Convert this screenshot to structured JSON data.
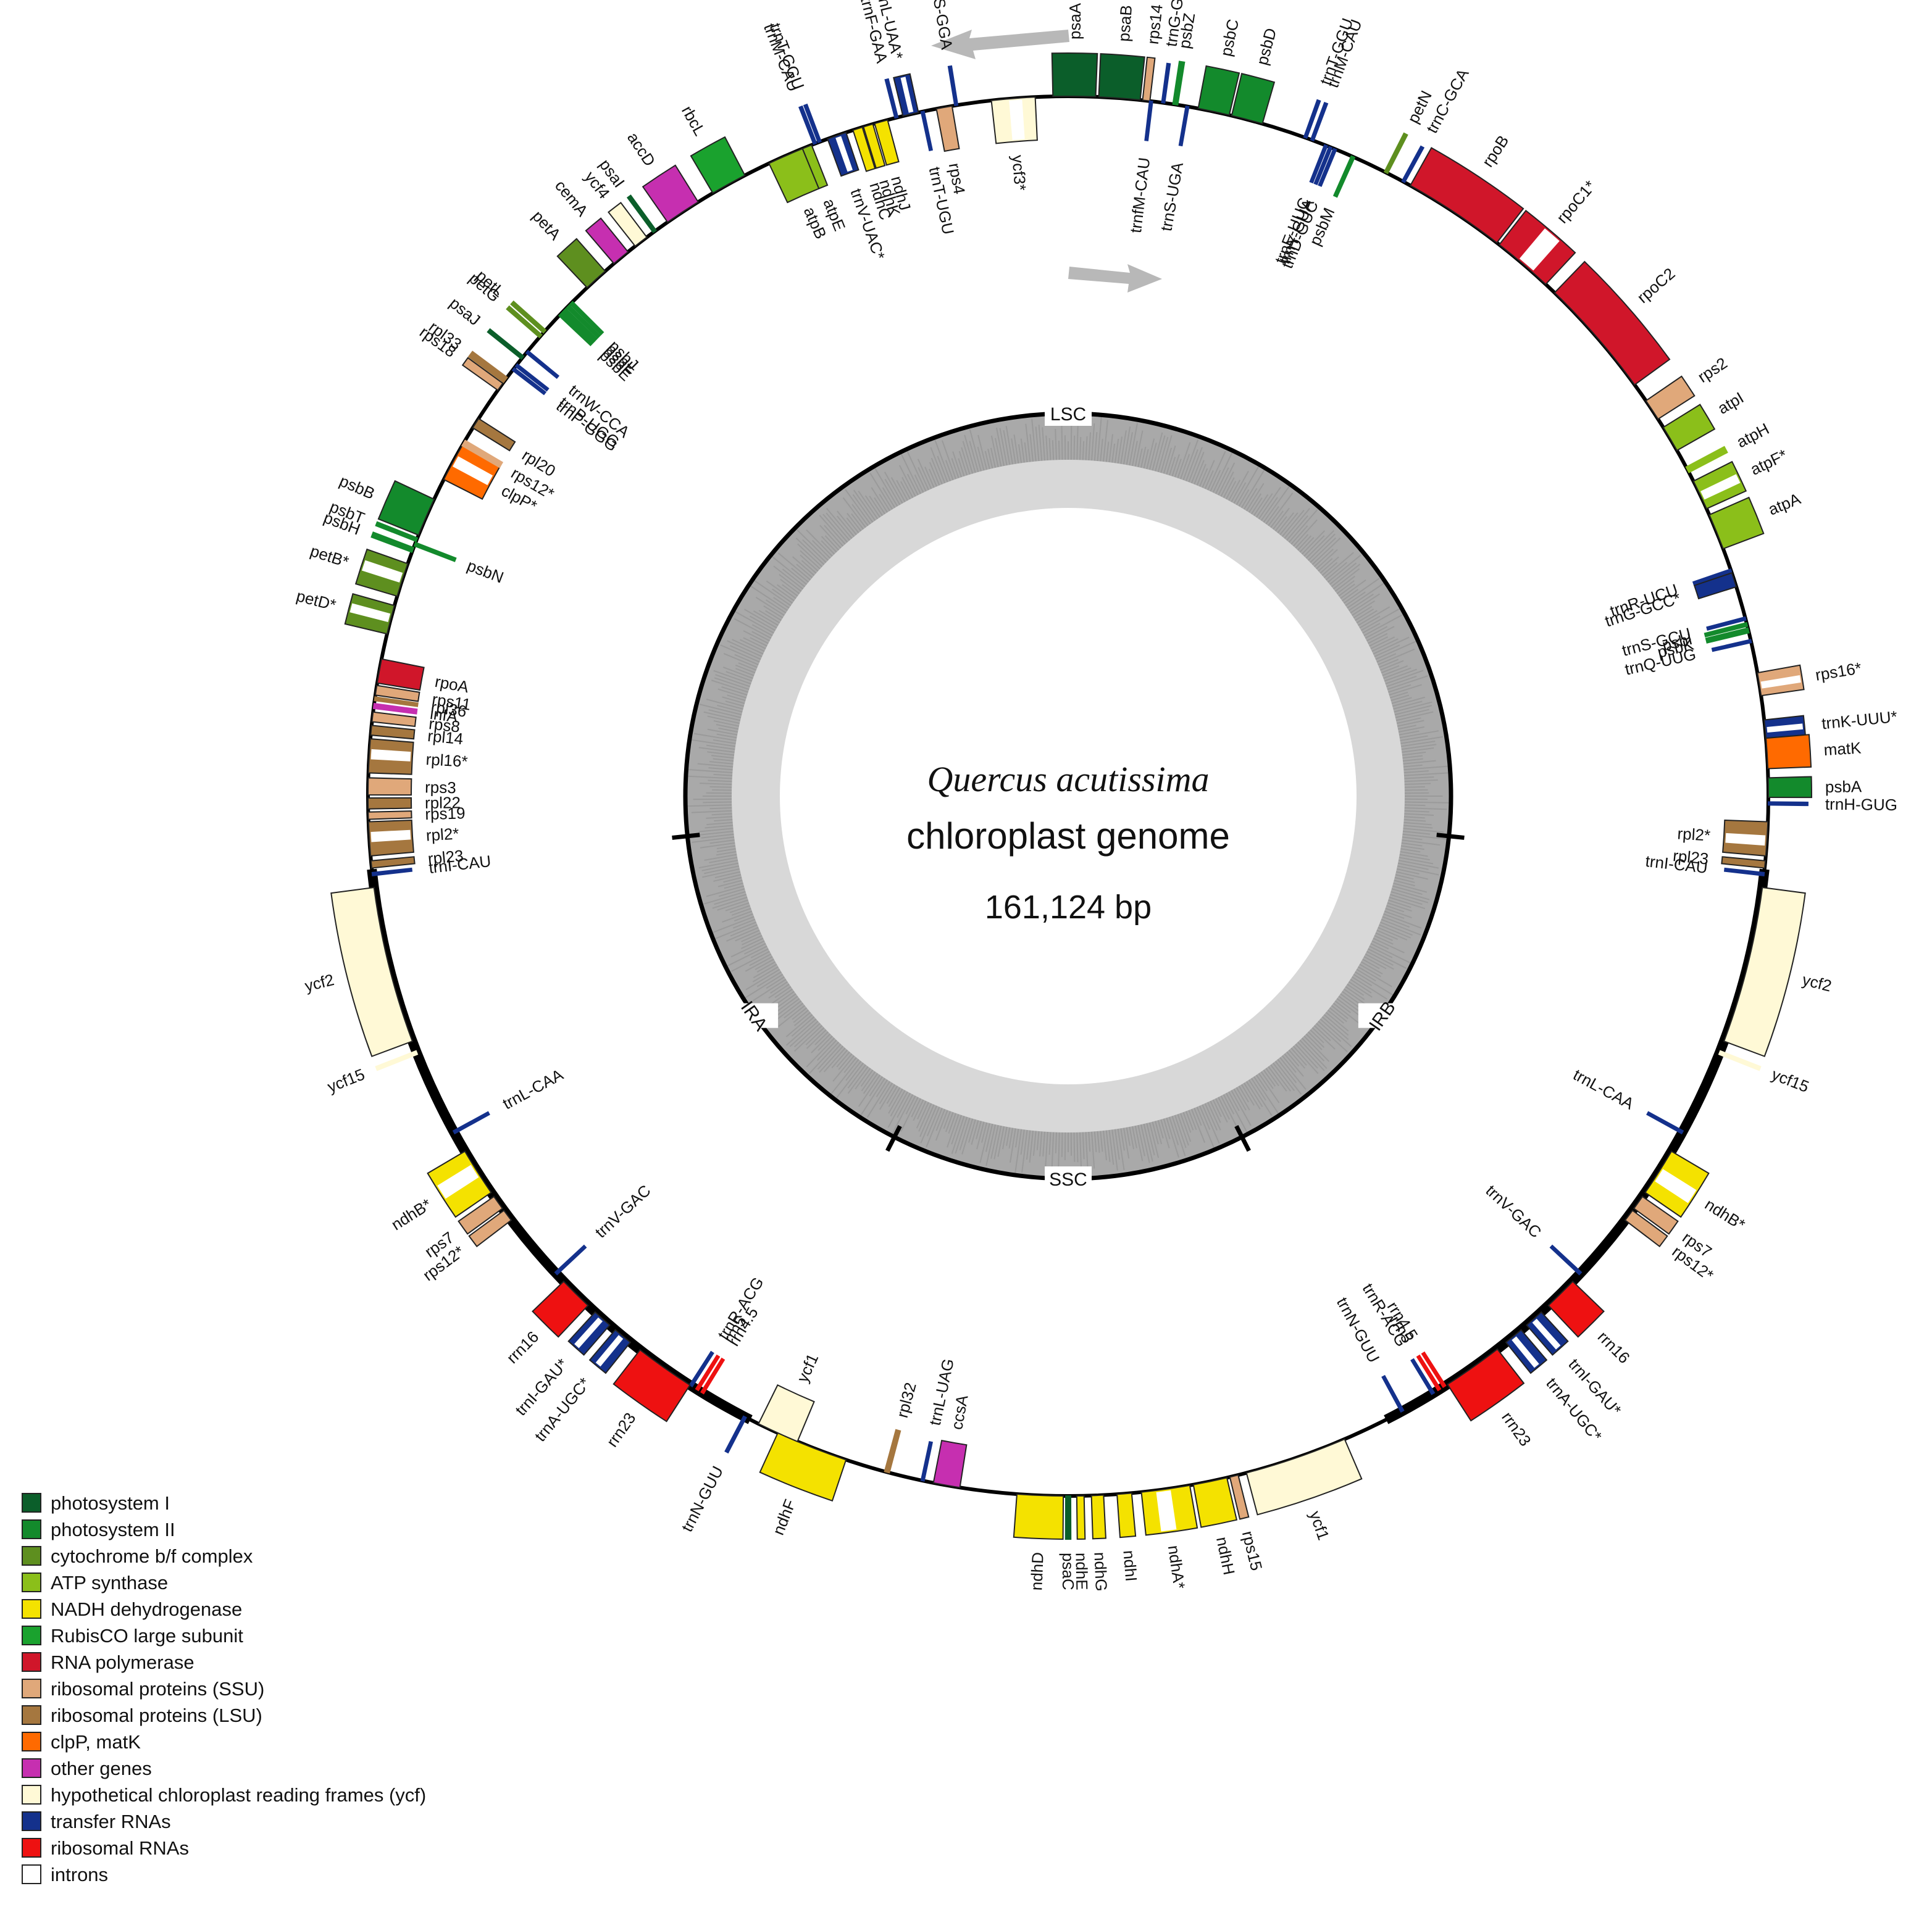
{
  "title": {
    "species": "Quercus acutissima",
    "subtitle": "chloroplast genome",
    "size_label": "161,124 bp"
  },
  "regions": [
    "LSC",
    "IRB",
    "SSC",
    "IRA"
  ],
  "legend": [
    {
      "label": "photosystem I",
      "color": "#0b5e2a"
    },
    {
      "label": "photosystem II",
      "color": "#138a2c"
    },
    {
      "label": "cytochrome b/f complex",
      "color": "#5e8f1f"
    },
    {
      "label": "ATP synthase",
      "color": "#8bbf1a"
    },
    {
      "label": "NADH dehydrogenase",
      "color": "#f4e200"
    },
    {
      "label": "RubisCO large subunit",
      "color": "#1aa22e"
    },
    {
      "label": "RNA polymerase",
      "color": "#d0162a"
    },
    {
      "label": "ribosomal proteins (SSU)",
      "color": "#e0a87a"
    },
    {
      "label": "ribosomal proteins (LSU)",
      "color": "#a5773f"
    },
    {
      "label": "clpP, matK",
      "color": "#ff6a00"
    },
    {
      "label": "other genes",
      "color": "#c62fb0"
    },
    {
      "label": "hypothetical chloroplast reading frames (ycf)",
      "color": "#fff9d6"
    },
    {
      "label": "transfer RNAs",
      "color": "#14318c"
    },
    {
      "label": "ribosomal RNAs",
      "color": "#ee1111"
    },
    {
      "label": "introns",
      "color": "#ffffff"
    }
  ],
  "genes": [
    {
      "name": "psaA",
      "cat": "photosystem I",
      "side": "out",
      "clock": 0.5,
      "span": 3.5
    },
    {
      "name": "psaB",
      "cat": "photosystem I",
      "side": "out",
      "clock": 4.2,
      "span": 3.4
    },
    {
      "name": "rps14",
      "cat": "ribosomal proteins (SSU)",
      "side": "out",
      "clock": 6.4,
      "span": 0.6
    },
    {
      "name": "trnfM-CAU",
      "cat": "transfer RNAs",
      "side": "in",
      "clock": 6.8,
      "span": 0.25
    },
    {
      "name": "trnG-GCC*",
      "cat": "transfer RNAs",
      "side": "out",
      "clock": 7.8,
      "span": 0.25
    },
    {
      "name": "psbZ",
      "cat": "photosystem II",
      "side": "out",
      "clock": 8.8,
      "span": 0.4
    },
    {
      "name": "trnS-UGA",
      "cat": "transfer RNAs",
      "side": "in",
      "clock": 9.8,
      "span": 0.25
    },
    {
      "name": "psbC",
      "cat": "photosystem II",
      "side": "out",
      "clock": 12.0,
      "span": 2.6
    },
    {
      "name": "psbD",
      "cat": "photosystem II",
      "side": "out",
      "clock": 14.8,
      "span": 2.6
    },
    {
      "name": "trnT-GGU",
      "cat": "transfer RNAs",
      "side": "out",
      "clock": 19.8,
      "span": 0.25
    },
    {
      "name": "trnM-CAU",
      "cat": "transfer RNAs",
      "side": "out",
      "clock": 20.4,
      "span": 0.25
    },
    {
      "name": "trnE-UUC",
      "cat": "transfer RNAs",
      "side": "in",
      "clock": 21.6,
      "span": 0.25
    },
    {
      "name": "trnY-GUA",
      "cat": "transfer RNAs",
      "side": "in",
      "clock": 22.0,
      "span": 0.25
    },
    {
      "name": "trnD-GUC",
      "cat": "transfer RNAs",
      "side": "in",
      "clock": 22.4,
      "span": 0.25
    },
    {
      "name": "psbM",
      "cat": "photosystem II",
      "side": "in",
      "clock": 24.0,
      "span": 0.3
    },
    {
      "name": "petN",
      "cat": "cytochrome b/f complex",
      "side": "out",
      "clock": 27.0,
      "span": 0.3
    },
    {
      "name": "trnC-GCA",
      "cat": "transfer RNAs",
      "side": "out",
      "clock": 28.6,
      "span": 0.25
    },
    {
      "name": "rpoB",
      "cat": "RNA polymerase",
      "side": "out",
      "clock": 33.5,
      "span": 8.5
    },
    {
      "name": "rpoC1*",
      "cat": "RNA polymerase",
      "side": "out",
      "clock": 40.5,
      "span": 5.0
    },
    {
      "name": "rpoC2",
      "cat": "RNA polymerase",
      "side": "out",
      "clock": 49.0,
      "span": 10.0
    },
    {
      "name": "rps2",
      "cat": "ribosomal proteins (SSU)",
      "side": "out",
      "clock": 56.5,
      "span": 1.8
    },
    {
      "name": "atpI",
      "cat": "ATP synthase",
      "side": "out",
      "clock": 59.3,
      "span": 2.2
    },
    {
      "name": "atpH",
      "cat": "ATP synthase",
      "side": "out",
      "clock": 62.2,
      "span": 0.5
    },
    {
      "name": "atpF*",
      "cat": "ATP synthase",
      "side": "out",
      "clock": 64.5,
      "span": 2.5
    },
    {
      "name": "atpA",
      "cat": "ATP synthase",
      "side": "out",
      "clock": 67.8,
      "span": 3.0
    },
    {
      "name": "trnR-UCU",
      "cat": "transfer RNAs",
      "side": "in",
      "clock": 71.2,
      "span": 0.25
    },
    {
      "name": "trnG-GCC*",
      "cat": "transfer RNAs",
      "side": "in",
      "clock": 72.0,
      "span": 1.2
    },
    {
      "name": "trnS-GCU",
      "cat": "transfer RNAs",
      "side": "in",
      "clock": 75.3,
      "span": 0.25
    },
    {
      "name": "psbI",
      "cat": "photosystem II",
      "side": "in",
      "clock": 75.8,
      "span": 0.3
    },
    {
      "name": "psbK",
      "cat": "photosystem II",
      "side": "in",
      "clock": 76.3,
      "span": 0.4
    },
    {
      "name": "trnQ-UUG",
      "cat": "transfer RNAs",
      "side": "in",
      "clock": 77.2,
      "span": 0.25
    },
    {
      "name": "rps16*",
      "cat": "ribosomal proteins (SSU)",
      "side": "out",
      "clock": 80.8,
      "span": 1.9
    },
    {
      "name": "trnK-UUU*",
      "cat": "transfer RNAs",
      "side": "out",
      "clock": 84.5,
      "span": 1.5
    },
    {
      "name": "matK",
      "cat": "clpP, matK",
      "side": "out",
      "clock": 86.5,
      "span": 2.5
    },
    {
      "name": "psbA",
      "cat": "photosystem II",
      "side": "out",
      "clock": 89.3,
      "span": 1.6
    },
    {
      "name": "trnH-GUG",
      "cat": "transfer RNAs",
      "side": "out",
      "clock": 90.6,
      "span": 0.25
    },
    {
      "name": "rpl2*",
      "cat": "ribosomal proteins (LSU)",
      "side": "in",
      "clock": 93.5,
      "span": 2.8
    },
    {
      "name": "rpl23",
      "cat": "ribosomal proteins (LSU)",
      "side": "in",
      "clock": 95.6,
      "span": 0.6
    },
    {
      "name": "trnI-CAU",
      "cat": "transfer RNAs",
      "side": "in",
      "clock": 96.4,
      "span": 0.25
    },
    {
      "name": "ycf2",
      "cat": "hypothetical chloroplast reading frames (ycf)",
      "side": "out",
      "clock": 104.0,
      "span": 13.0
    },
    {
      "name": "ycf15",
      "cat": "hypothetical chloroplast reading frames (ycf)",
      "side": "out",
      "clock": 111.5,
      "span": 0.3
    },
    {
      "name": "trnL-CAA",
      "cat": "transfer RNAs",
      "side": "in",
      "clock": 118.7,
      "span": 0.25
    },
    {
      "name": "ndhB*",
      "cat": "NADH dehydrogenase",
      "side": "out",
      "clock": 122.5,
      "span": 4.0
    },
    {
      "name": "rps7",
      "cat": "ribosomal proteins (SSU)",
      "side": "out",
      "clock": 125.5,
      "span": 1.2
    },
    {
      "name": "rps12*",
      "cat": "ribosomal proteins (SSU)",
      "side": "out",
      "clock": 126.8,
      "span": 1.0
    },
    {
      "name": "trnV-GAC",
      "cat": "transfer RNAs",
      "side": "in",
      "clock": 133.0,
      "span": 0.25
    },
    {
      "name": "rrn16",
      "cat": "ribosomal RNAs",
      "side": "out",
      "clock": 135.3,
      "span": 2.8
    },
    {
      "name": "trnI-GAU*",
      "cat": "transfer RNAs",
      "side": "out",
      "clock": 138.3,
      "span": 1.6
    },
    {
      "name": "trnA-UGC*",
      "cat": "transfer RNAs",
      "side": "out",
      "clock": 140.5,
      "span": 1.6
    },
    {
      "name": "rrn23",
      "cat": "ribosomal RNAs",
      "side": "out",
      "clock": 144.7,
      "span": 5.0
    },
    {
      "name": "rrn4.5",
      "cat": "ribosomal RNAs",
      "side": "in",
      "clock": 147.5,
      "span": 0.25
    },
    {
      "name": "rrn5",
      "cat": "ribosomal RNAs",
      "side": "in",
      "clock": 148.0,
      "span": 0.25
    },
    {
      "name": "trnR-ACG",
      "cat": "transfer RNAs",
      "side": "in",
      "clock": 148.6,
      "span": 0.25
    },
    {
      "name": "trnN-GUU",
      "cat": "transfer RNAs",
      "side": "in",
      "clock": 151.5,
      "span": 0.25
    },
    {
      "name": "ycf1",
      "cat": "hypothetical chloroplast reading frames (ycf)",
      "side": "out",
      "clock": 161.0,
      "span": 8.5
    },
    {
      "name": "rps15",
      "cat": "ribosomal proteins (SSU)",
      "side": "out",
      "clock": 166.3,
      "span": 0.7
    },
    {
      "name": "ndhH",
      "cat": "NADH dehydrogenase",
      "side": "out",
      "clock": 168.3,
      "span": 2.8
    },
    {
      "name": "ndhA*",
      "cat": "NADH dehydrogenase",
      "side": "out",
      "clock": 172.0,
      "span": 4.0
    },
    {
      "name": "ndhI",
      "cat": "NADH dehydrogenase",
      "side": "out",
      "clock": 175.4,
      "span": 1.2
    },
    {
      "name": "ndhG",
      "cat": "NADH dehydrogenase",
      "side": "out",
      "clock": 177.6,
      "span": 1.0
    },
    {
      "name": "ndhE",
      "cat": "NADH dehydrogenase",
      "side": "out",
      "clock": 179.0,
      "span": 0.6
    },
    {
      "name": "psaC",
      "cat": "photosystem I",
      "side": "out",
      "clock": 180.0,
      "span": 0.4
    },
    {
      "name": "ndhD",
      "cat": "NADH dehydrogenase",
      "side": "out",
      "clock": 182.3,
      "span": 3.8
    },
    {
      "name": "ccsA",
      "cat": "other genes",
      "side": "in",
      "clock": 190.0,
      "span": 2.2
    },
    {
      "name": "trnL-UAG",
      "cat": "transfer RNAs",
      "side": "in",
      "clock": 192.0,
      "span": 0.25
    },
    {
      "name": "rpl32",
      "cat": "ribosomal proteins (LSU)",
      "side": "in",
      "clock": 195.0,
      "span": 0.4
    },
    {
      "name": "ndhF",
      "cat": "NADH dehydrogenase",
      "side": "out",
      "clock": 201.5,
      "span": 6.0
    },
    {
      "name": "ycf1",
      "cat": "hypothetical chloroplast reading frames (ycf)",
      "side": "in",
      "clock": 204.5,
      "span": 3.5
    },
    {
      "name": "trnN-GUU",
      "cat": "transfer RNAs",
      "side": "out",
      "clock": 207.5,
      "span": 0.25
    },
    {
      "name": "rrn4.5",
      "cat": "ribosomal RNAs",
      "side": "in",
      "clock": 211.5,
      "span": 0.25
    },
    {
      "name": "rrn5",
      "cat": "ribosomal RNAs",
      "side": "in",
      "clock": 212.0,
      "span": 0.25
    },
    {
      "name": "trnR-ACG",
      "cat": "transfer RNAs",
      "side": "in",
      "clock": 212.6,
      "span": 0.25
    },
    {
      "name": "rrn23",
      "cat": "ribosomal RNAs",
      "side": "out",
      "clock": 215.2,
      "span": 5.0
    },
    {
      "name": "trnA-UGC*",
      "cat": "transfer RNAs",
      "side": "out",
      "clock": 219.5,
      "span": 1.6
    },
    {
      "name": "trnI-GAU*",
      "cat": "transfer RNAs",
      "side": "out",
      "clock": 221.7,
      "span": 1.6
    },
    {
      "name": "rrn16",
      "cat": "ribosomal RNAs",
      "side": "out",
      "clock": 224.7,
      "span": 2.8
    },
    {
      "name": "trnV-GAC",
      "cat": "transfer RNAs",
      "side": "in",
      "clock": 227.0,
      "span": 0.25
    },
    {
      "name": "rps12*",
      "cat": "ribosomal proteins (SSU)",
      "side": "out",
      "clock": 233.2,
      "span": 1.0
    },
    {
      "name": "rps7",
      "cat": "ribosomal proteins (SSU)",
      "side": "out",
      "clock": 234.5,
      "span": 1.2
    },
    {
      "name": "ndhB*",
      "cat": "NADH dehydrogenase",
      "side": "out",
      "clock": 237.5,
      "span": 4.0
    },
    {
      "name": "trnL-CAA",
      "cat": "transfer RNAs",
      "side": "in",
      "clock": 241.3,
      "span": 0.25
    },
    {
      "name": "ycf15",
      "cat": "hypothetical chloroplast reading frames (ycf)",
      "side": "out",
      "clock": 248.5,
      "span": 0.3
    },
    {
      "name": "ycf2",
      "cat": "hypothetical chloroplast reading frames (ycf)",
      "side": "out",
      "clock": 256.0,
      "span": 13.0
    },
    {
      "name": "trnI-CAU",
      "cat": "transfer RNAs",
      "side": "in",
      "clock": 263.6,
      "span": 0.25
    },
    {
      "name": "rpl23",
      "cat": "ribosomal proteins (LSU)",
      "side": "in",
      "clock": 264.4,
      "span": 0.6
    },
    {
      "name": "rpl2*",
      "cat": "ribosomal proteins (LSU)",
      "side": "in",
      "clock": 266.5,
      "span": 2.8
    },
    {
      "name": "rps19",
      "cat": "ribosomal proteins (SSU)",
      "side": "in",
      "clock": 268.4,
      "span": 0.6
    },
    {
      "name": "rpl22",
      "cat": "ribosomal proteins (LSU)",
      "side": "in",
      "clock": 269.4,
      "span": 0.9
    },
    {
      "name": "rps3",
      "cat": "ribosomal proteins (SSU)",
      "side": "in",
      "clock": 270.8,
      "span": 1.4
    },
    {
      "name": "rpl16*",
      "cat": "ribosomal proteins (LSU)",
      "side": "in",
      "clock": 273.3,
      "span": 2.8
    },
    {
      "name": "rpl14",
      "cat": "ribosomal proteins (LSU)",
      "side": "in",
      "clock": 275.4,
      "span": 0.8
    },
    {
      "name": "rps8",
      "cat": "ribosomal proteins (SSU)",
      "side": "in",
      "clock": 276.5,
      "span": 0.8
    },
    {
      "name": "infA",
      "cat": "other genes",
      "side": "in",
      "clock": 277.4,
      "span": 0.4
    },
    {
      "name": "rpl36",
      "cat": "ribosomal proteins (LSU)",
      "side": "in",
      "clock": 278.0,
      "span": 0.3
    },
    {
      "name": "rps11",
      "cat": "ribosomal proteins (SSU)",
      "side": "in",
      "clock": 278.7,
      "span": 0.8
    },
    {
      "name": "rpoA",
      "cat": "RNA polymerase",
      "side": "in",
      "clock": 280.3,
      "span": 2.0
    },
    {
      "name": "petD*",
      "cat": "cytochrome b/f complex",
      "side": "out",
      "clock": 284.6,
      "span": 2.4
    },
    {
      "name": "petB*",
      "cat": "cytochrome b/f complex",
      "side": "out",
      "clock": 288.0,
      "span": 2.8
    },
    {
      "name": "psbH",
      "cat": "photosystem II",
      "side": "out",
      "clock": 290.6,
      "span": 0.4
    },
    {
      "name": "psbN",
      "cat": "photosystem II",
      "side": "in",
      "clock": 291.1,
      "span": 0.3
    },
    {
      "name": "psbT",
      "cat": "photosystem II",
      "side": "out",
      "clock": 291.5,
      "span": 0.3
    },
    {
      "name": "psbB",
      "cat": "photosystem II",
      "side": "out",
      "clock": 293.5,
      "span": 3.2
    },
    {
      "name": "clpP*",
      "cat": "clpP, matK",
      "side": "in",
      "clock": 298.5,
      "span": 3.2
    },
    {
      "name": "rps12*",
      "cat": "ribosomal proteins (SSU)",
      "side": "in",
      "clock": 300.3,
      "span": 0.5
    },
    {
      "name": "rpl20",
      "cat": "ribosomal proteins (LSU)",
      "side": "in",
      "clock": 302.2,
      "span": 0.9
    },
    {
      "name": "rps18",
      "cat": "ribosomal proteins (SSU)",
      "side": "out",
      "clock": 305.8,
      "span": 0.7
    },
    {
      "name": "rpl33",
      "cat": "ribosomal proteins (LSU)",
      "side": "out",
      "clock": 306.5,
      "span": 0.5
    },
    {
      "name": "trnP-GGG",
      "cat": "transfer RNAs",
      "side": "in",
      "clock": 307.6,
      "span": 0.25
    },
    {
      "name": "trnP-UGG",
      "cat": "transfer RNAs",
      "side": "in",
      "clock": 308.0,
      "span": 0.25
    },
    {
      "name": "psaJ",
      "cat": "photosystem I",
      "side": "out",
      "clock": 308.8,
      "span": 0.3
    },
    {
      "name": "trnW-CCA",
      "cat": "transfer RNAs",
      "side": "in",
      "clock": 309.4,
      "span": 0.25
    },
    {
      "name": "petG",
      "cat": "cytochrome b/f complex",
      "side": "out",
      "clock": 311.1,
      "span": 0.3
    },
    {
      "name": "petL",
      "cat": "cytochrome b/f complex",
      "side": "out",
      "clock": 311.6,
      "span": 0.3
    },
    {
      "name": "psbE",
      "cat": "photosystem II",
      "side": "in",
      "clock": 313.6,
      "span": 0.5
    },
    {
      "name": "psbF",
      "cat": "photosystem II",
      "side": "in",
      "clock": 314.0,
      "span": 0.3
    },
    {
      "name": "psbL",
      "cat": "photosystem II",
      "side": "in",
      "clock": 314.4,
      "span": 0.3
    },
    {
      "name": "psbJ",
      "cat": "photosystem II",
      "side": "in",
      "clock": 314.8,
      "span": 0.3
    },
    {
      "name": "petA",
      "cat": "cytochrome b/f complex",
      "side": "out",
      "clock": 317.6,
      "span": 2.0
    },
    {
      "name": "cemA",
      "cat": "other genes",
      "side": "out",
      "clock": 320.3,
      "span": 1.5
    },
    {
      "name": "ycf4",
      "cat": "hypothetical chloroplast reading frames (ycf)",
      "side": "out",
      "clock": 322.4,
      "span": 1.2
    },
    {
      "name": "psaI",
      "cat": "photosystem I",
      "side": "out",
      "clock": 323.8,
      "span": 0.3
    },
    {
      "name": "accD",
      "cat": "other genes",
      "side": "out",
      "clock": 326.6,
      "span": 3.0
    },
    {
      "name": "rbcL",
      "cat": "RubisCO large subunit",
      "side": "out",
      "clock": 331.0,
      "span": 3.0
    },
    {
      "name": "atpB",
      "cat": "ATP synthase",
      "side": "in",
      "clock": 336.2,
      "span": 3.0
    },
    {
      "name": "atpE",
      "cat": "ATP synthase",
      "side": "in",
      "clock": 338.1,
      "span": 0.8
    },
    {
      "name": "trnM-CAU",
      "cat": "transfer RNAs",
      "side": "out",
      "clock": 338.8,
      "span": 0.25
    },
    {
      "name": "trnT-GGU",
      "cat": "transfer RNAs",
      "side": "out",
      "clock": 339.2,
      "span": 0.25
    },
    {
      "name": "trnV-UAC*",
      "cat": "transfer RNAs",
      "side": "in",
      "clock": 340.7,
      "span": 1.6
    },
    {
      "name": "ndhC",
      "cat": "NADH dehydrogenase",
      "side": "in",
      "clock": 342.5,
      "span": 0.8
    },
    {
      "name": "ndhK",
      "cat": "NADH dehydrogenase",
      "side": "in",
      "clock": 343.4,
      "span": 0.8
    },
    {
      "name": "ndhJ",
      "cat": "NADH dehydrogenase",
      "side": "in",
      "clock": 344.5,
      "span": 1.1
    },
    {
      "name": "trnF-GAA",
      "cat": "transfer RNAs",
      "side": "out",
      "clock": 345.8,
      "span": 0.25
    },
    {
      "name": "trnL-UAA*",
      "cat": "transfer RNAs",
      "side": "out",
      "clock": 347.0,
      "span": 1.3
    },
    {
      "name": "trnT-UGU",
      "cat": "transfer RNAs",
      "side": "in",
      "clock": 348.0,
      "span": 0.25
    },
    {
      "name": "rps4",
      "cat": "ribosomal proteins (SSU)",
      "side": "in",
      "clock": 349.8,
      "span": 1.3
    },
    {
      "name": "trnS-GGA",
      "cat": "transfer RNAs",
      "side": "out",
      "clock": 350.8,
      "span": 0.25
    },
    {
      "name": "ycf3*",
      "cat": "hypothetical chloroplast reading frames (ycf)",
      "side": "in",
      "clock": 355.5,
      "span": 3.6
    }
  ]
}
